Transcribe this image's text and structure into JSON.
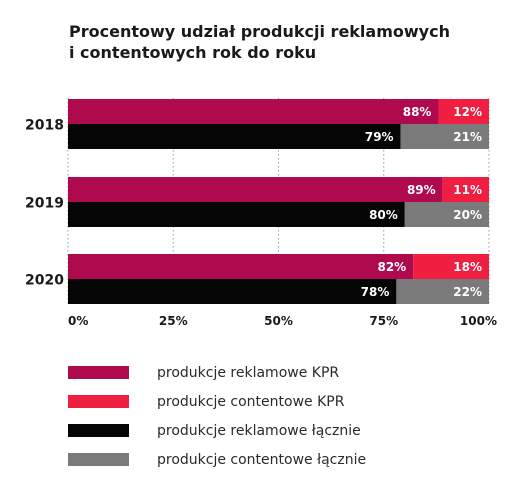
{
  "chart_data": {
    "type": "bar",
    "orientation": "horizontal",
    "stacked": true,
    "title": [
      "Procentowy udział produkcji reklamowych",
      "i contentowych rok do roku"
    ],
    "categories": [
      "2018",
      "2019",
      "2020"
    ],
    "groups": [
      {
        "bar": "KPR",
        "series": [
          {
            "name": "produkcje reklamowe KPR",
            "color": "#b00a4f",
            "values": [
              88,
              89,
              82
            ],
            "labels": [
              "88%",
              "89%",
              "82%"
            ]
          },
          {
            "name": "produkcje contentowe KPR",
            "color": "#f01f42",
            "values": [
              12,
              11,
              18
            ],
            "labels": [
              "12%",
              "11%",
              "18%"
            ]
          }
        ]
      },
      {
        "bar": "łącznie",
        "series": [
          {
            "name": "produkcje reklamowe łącznie",
            "color": "#050505",
            "values": [
              79,
              80,
              78
            ],
            "labels": [
              "79%",
              "80%",
              "78%"
            ]
          },
          {
            "name": "produkcje contentowe łącznie",
            "color": "#7a7a7a",
            "values": [
              21,
              20,
              22
            ],
            "labels": [
              "21%",
              "20%",
              "22%"
            ]
          }
        ]
      }
    ],
    "xlim": [
      0,
      100
    ],
    "xticks": [
      0,
      25,
      50,
      75,
      100
    ],
    "xtick_labels": [
      "0%",
      "25%",
      "50%",
      "75%",
      "100%"
    ],
    "grid": "vertical-dotted",
    "legend_placement": "bottom",
    "legend": [
      {
        "label": "produkcje reklamowe KPR",
        "color": "#b00a4f"
      },
      {
        "label": "produkcje contentowe KPR",
        "color": "#f01f42"
      },
      {
        "label": "produkcje reklamowe łącznie",
        "color": "#050505"
      },
      {
        "label": "produkcje contentowe łącznie",
        "color": "#7a7a7a"
      }
    ]
  }
}
